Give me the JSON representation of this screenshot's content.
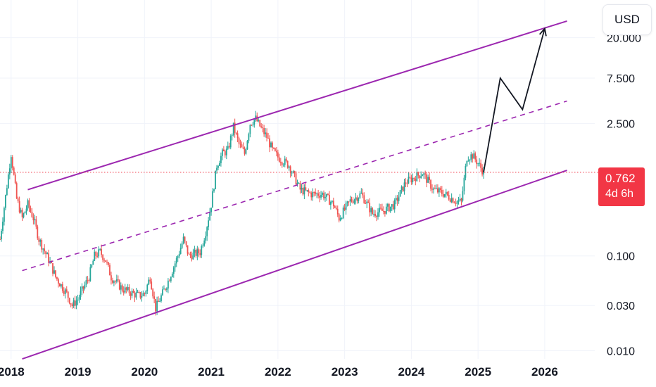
{
  "chart_data": {
    "type": "candlestick",
    "title": "",
    "currency": "USD",
    "y_scale": "log",
    "ylim": [
      0.0085,
      50
    ],
    "xlim": [
      "2017-11",
      "2026-10"
    ],
    "y_ticks": [
      {
        "value": 20,
        "label": "20.000"
      },
      {
        "value": 7.5,
        "label": "7.500"
      },
      {
        "value": 2.5,
        "label": "2.500"
      },
      {
        "value": 0.1,
        "label": "0.100"
      },
      {
        "value": 0.03,
        "label": "0.030"
      },
      {
        "value": 0.01,
        "label": "0.010"
      }
    ],
    "x_ticks": [
      "2018",
      "2019",
      "2020",
      "2021",
      "2022",
      "2023",
      "2024",
      "2025",
      "2026"
    ],
    "last_price": {
      "value": 0.762,
      "label": "0.762",
      "countdown": "4d 6h"
    },
    "price_series": [
      [
        "2017-11",
        0.15
      ],
      [
        "2018-01",
        1.2
      ],
      [
        "2018-02",
        0.4
      ],
      [
        "2018-03",
        0.25
      ],
      [
        "2018-04",
        0.35
      ],
      [
        "2018-05",
        0.25
      ],
      [
        "2018-06",
        0.15
      ],
      [
        "2018-08",
        0.085
      ],
      [
        "2018-09",
        0.06
      ],
      [
        "2018-11",
        0.04
      ],
      [
        "2018-12",
        0.03
      ],
      [
        "2019-01",
        0.035
      ],
      [
        "2019-03",
        0.06
      ],
      [
        "2019-04",
        0.1
      ],
      [
        "2019-05",
        0.11
      ],
      [
        "2019-06",
        0.09
      ],
      [
        "2019-07",
        0.06
      ],
      [
        "2019-09",
        0.045
      ],
      [
        "2019-11",
        0.04
      ],
      [
        "2019-12",
        0.038
      ],
      [
        "2020-01",
        0.04
      ],
      [
        "2020-02",
        0.06
      ],
      [
        "2020-03",
        0.028
      ],
      [
        "2020-05",
        0.05
      ],
      [
        "2020-07",
        0.1
      ],
      [
        "2020-08",
        0.15
      ],
      [
        "2020-09",
        0.1
      ],
      [
        "2020-11",
        0.11
      ],
      [
        "2020-12",
        0.18
      ],
      [
        "2021-01",
        0.35
      ],
      [
        "2021-02",
        0.9
      ],
      [
        "2021-03",
        1.2
      ],
      [
        "2021-04",
        1.3
      ],
      [
        "2021-05",
        2.3
      ],
      [
        "2021-06",
        1.5
      ],
      [
        "2021-07",
        1.2
      ],
      [
        "2021-08",
        2.5
      ],
      [
        "2021-09",
        2.8
      ],
      [
        "2021-10",
        2.2
      ],
      [
        "2021-11",
        1.8
      ],
      [
        "2021-12",
        1.3
      ],
      [
        "2022-01",
        1.1
      ],
      [
        "2022-03",
        0.9
      ],
      [
        "2022-05",
        0.5
      ],
      [
        "2022-07",
        0.45
      ],
      [
        "2022-09",
        0.45
      ],
      [
        "2022-11",
        0.35
      ],
      [
        "2022-12",
        0.25
      ],
      [
        "2023-02",
        0.38
      ],
      [
        "2023-04",
        0.45
      ],
      [
        "2023-06",
        0.28
      ],
      [
        "2023-08",
        0.3
      ],
      [
        "2023-10",
        0.35
      ],
      [
        "2023-12",
        0.6
      ],
      [
        "2024-03",
        0.75
      ],
      [
        "2024-05",
        0.5
      ],
      [
        "2024-07",
        0.45
      ],
      [
        "2024-09",
        0.38
      ],
      [
        "2024-10",
        0.37
      ],
      [
        "2024-11",
        1.1
      ],
      [
        "2024-12",
        1.15
      ],
      [
        "2025-01",
        0.95
      ],
      [
        "2025-02",
        0.762
      ]
    ],
    "channel": {
      "upper": [
        [
          "2018-04",
          0.5
        ],
        [
          "2026-05",
          30
        ]
      ],
      "middle": [
        [
          "2018-03",
          0.07
        ],
        [
          "2026-05",
          4.3
        ]
      ],
      "lower": [
        [
          "2018-03",
          0.0082
        ],
        [
          "2026-05",
          0.8
        ]
      ]
    },
    "projection": [
      [
        "2025-02",
        0.762
      ],
      [
        "2025-05",
        7.5
      ],
      [
        "2025-09",
        3.5
      ],
      [
        "2026-01",
        25
      ]
    ],
    "colors": {
      "up": "#26a69a",
      "down": "#ef5350",
      "channel": "#9c27b0",
      "projection": "#131722",
      "price_line": "#f23645",
      "grid": "#f0f3fa",
      "axis_text": "#131722"
    }
  }
}
